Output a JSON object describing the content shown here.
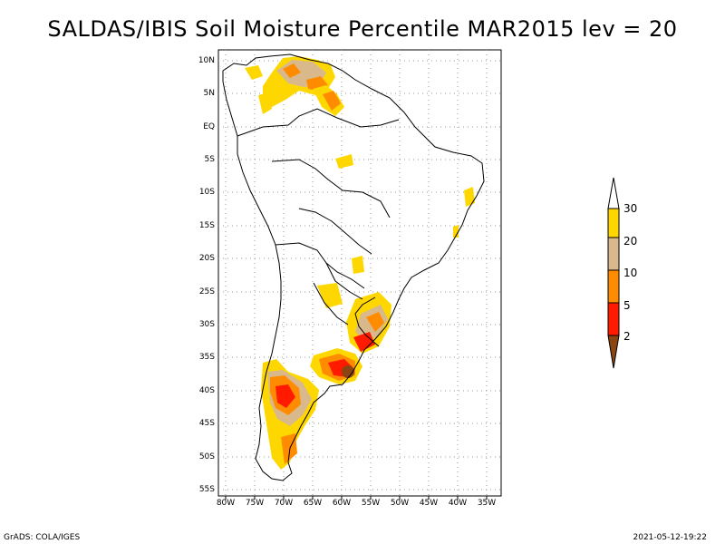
{
  "title": "SALDAS/IBIS Soil Moisture Percentile MAR2015 lev = 20",
  "axes": {
    "y_labels": [
      "10N",
      "5N",
      "EQ",
      "5S",
      "10S",
      "15S",
      "20S",
      "25S",
      "30S",
      "35S",
      "40S",
      "45S",
      "50S",
      "55S"
    ],
    "x_labels": [
      "80W",
      "75W",
      "70W",
      "65W",
      "60W",
      "55W",
      "50W",
      "45W",
      "40W",
      "35W"
    ]
  },
  "colorbar": {
    "levels": [
      "30",
      "20",
      "10",
      "5",
      "2"
    ],
    "colors": {
      "above": "#ffffff",
      "c20_30": "#ffd700",
      "c10_20": "#d9b98c",
      "c5_10": "#ff8c00",
      "c2_5": "#ff1a00",
      "below2": "#8b4513"
    }
  },
  "footer": {
    "left": "GrADS: COLA/IGES",
    "right": "2021-05-12-19:22"
  }
}
